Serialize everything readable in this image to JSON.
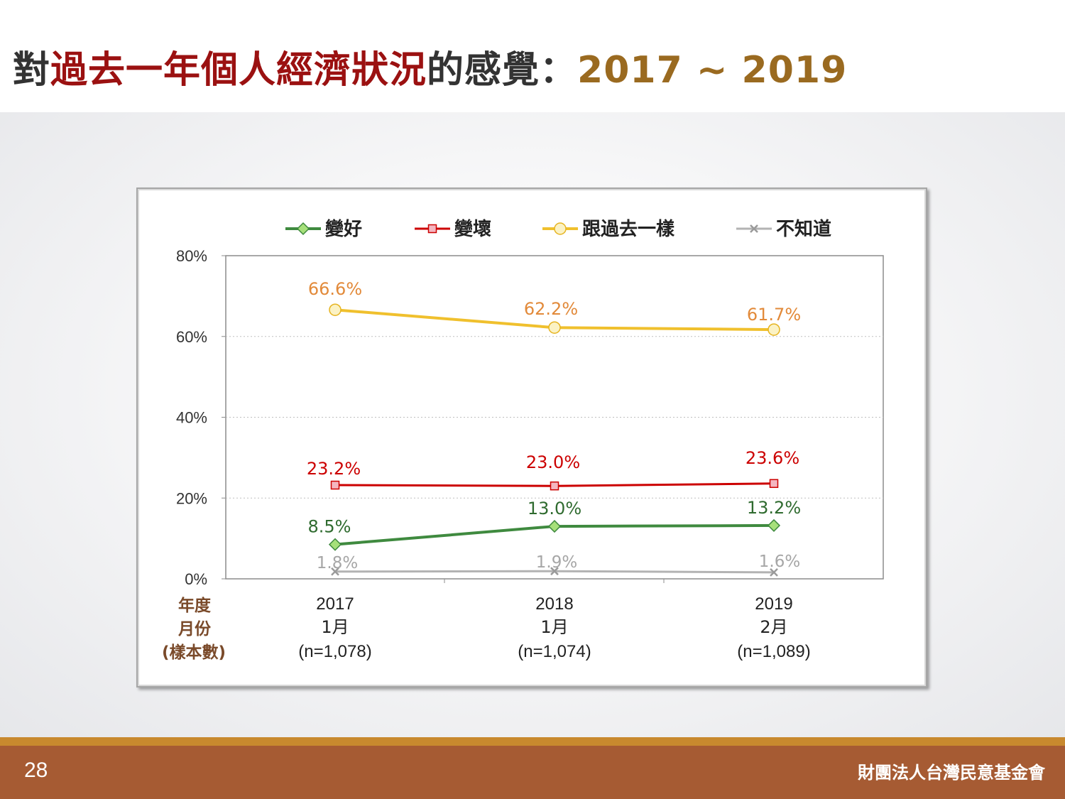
{
  "title": {
    "part1": "對",
    "part2": "過去一年個人經濟狀況",
    "part3": "的感覺：",
    "part4": "2017 ~ 2019"
  },
  "footer": {
    "page_number": "28",
    "org": "財團法人台灣民意基金會"
  },
  "colors": {
    "good": "#3f8a3f",
    "bad": "#cc0000",
    "same": "#f0c02d",
    "unknown": "#b3b3b3",
    "same_label": "#e28a3a",
    "good_label": "#2f6b2f",
    "unknown_label": "#a6a6a6",
    "axis_meta": "#7a4a2a"
  },
  "chart_data": {
    "type": "line",
    "y_axis": {
      "min": 0,
      "max": 80,
      "ticks": [
        "0%",
        "20%",
        "40%",
        "60%",
        "80%"
      ]
    },
    "grid": "dotted-horizontal",
    "legend_position": "top",
    "x_axis_row_titles": [
      "年度",
      "月份",
      "(樣本數)"
    ],
    "categories": [
      {
        "year": "2017",
        "month": "1月",
        "n": "(n=1,078)"
      },
      {
        "year": "2018",
        "month": "1月",
        "n": "(n=1,074)"
      },
      {
        "year": "2019",
        "month": "2月",
        "n": "(n=1,089)"
      }
    ],
    "series": [
      {
        "key": "good",
        "name": "變好",
        "marker": "diamond",
        "values": [
          8.5,
          13.0,
          13.2
        ],
        "labels": [
          "8.5%",
          "13.0%",
          "13.2%"
        ]
      },
      {
        "key": "bad",
        "name": "變壞",
        "marker": "square",
        "values": [
          23.2,
          23.0,
          23.6
        ],
        "labels": [
          "23.2%",
          "23.0%",
          "23.6%"
        ]
      },
      {
        "key": "same",
        "name": "跟過去一樣",
        "marker": "circle",
        "values": [
          66.6,
          62.2,
          61.7
        ],
        "labels": [
          "66.6%",
          "62.2%",
          "61.7%"
        ]
      },
      {
        "key": "unknown",
        "name": "不知道",
        "marker": "x",
        "values": [
          1.8,
          1.9,
          1.6
        ],
        "labels": [
          "1.8%",
          "1.9%",
          "1.6%"
        ]
      }
    ]
  }
}
